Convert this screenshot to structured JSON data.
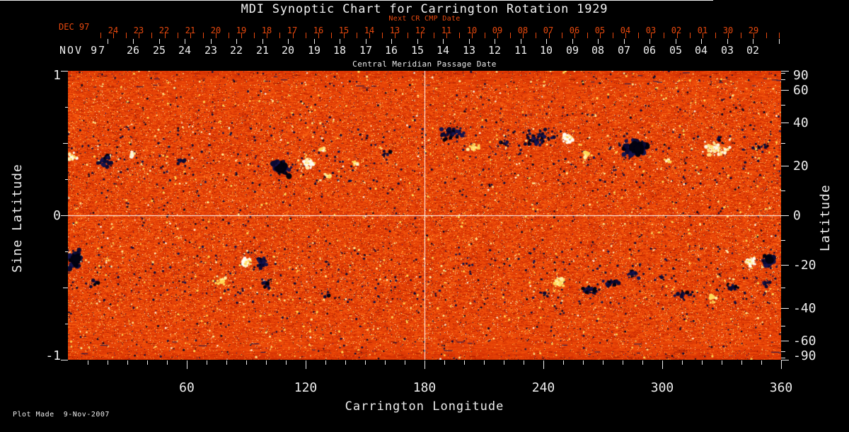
{
  "page": {
    "title": "MDI Synoptic Chart for Carrington Rotation 1929"
  },
  "colors": {
    "background": "#000000",
    "text": "#ededed",
    "accent_red": "#e8490e",
    "crosshair": "#ffffff"
  },
  "footer": {
    "plot_made": "Plot Made  9-Nov-2007"
  },
  "chart_data": {
    "type": "heatmap",
    "title": "MDI Synoptic Chart for Carrington Rotation 1929",
    "axes": {
      "top_next_cr": {
        "label": "Next CR CMP Date",
        "month": "DEC 97",
        "days": [
          "24",
          "23",
          "22",
          "21",
          "20",
          "19",
          "18",
          "17",
          "16",
          "15",
          "14",
          "13",
          "12",
          "11",
          "10",
          "09",
          "08",
          "07",
          "06",
          "05",
          "04",
          "03",
          "02",
          "01",
          "30",
          "29"
        ]
      },
      "top_cmp": {
        "label": "Central Meridian Passage Date",
        "month": "NOV 97",
        "days": [
          "26",
          "25",
          "24",
          "23",
          "22",
          "21",
          "20",
          "19",
          "18",
          "17",
          "16",
          "15",
          "14",
          "13",
          "12",
          "11",
          "10",
          "09",
          "08",
          "07",
          "06",
          "05",
          "04",
          "03",
          "02"
        ]
      },
      "bottom": {
        "label": "Carrington Longitude",
        "range": [
          0,
          360
        ],
        "major_ticks": [
          60,
          120,
          180,
          240,
          300,
          360
        ],
        "major_tick_labels": [
          "60",
          "120",
          "180",
          "240",
          "300",
          "360"
        ],
        "minor_tick_step": 10
      },
      "left": {
        "label": "Sine Latitude",
        "range": [
          1,
          -1
        ],
        "labeled_ticks": [
          1,
          0,
          -1
        ],
        "tick_labels": [
          "1",
          "0",
          "-1"
        ],
        "medium_ticks": [
          0.5,
          -0.5
        ],
        "minor_ticks": [
          0.75,
          0.25,
          -0.25,
          -0.75
        ]
      },
      "right": {
        "label": "Latitude",
        "labeled_ticks": [
          90,
          60,
          40,
          20,
          0,
          -20,
          -40,
          -60,
          -90
        ],
        "tick_labels": [
          "90",
          "60",
          "40",
          "20",
          "0",
          "-20",
          "-40",
          "-60",
          "-90"
        ],
        "minor_tick_step": 10
      }
    },
    "crosshair": {
      "longitude": 180,
      "sine_latitude": 0
    },
    "colormap": {
      "description": "solar magnetogram: orange-red quiet-sun noise, dark navy/black = negative polarity flux, white/yellow = positive polarity flux",
      "negative_polarity": "#0b0b3a",
      "positive_polarity": "#fffdf2",
      "palette": [
        [
          0.0,
          "#400600"
        ],
        [
          0.12,
          "#8c1400"
        ],
        [
          0.3,
          "#cc2a02"
        ],
        [
          0.5,
          "#ee4a08"
        ],
        [
          0.66,
          "#fa6414"
        ],
        [
          0.8,
          "#ff8c24"
        ],
        [
          0.9,
          "#ffc24a"
        ],
        [
          0.96,
          "#ffe88c"
        ],
        [
          1.0,
          "#fffdf0"
        ]
      ]
    },
    "active_regions": [
      {
        "lon": 19,
        "lat": 22,
        "rx": 18,
        "ry": 11,
        "polarity": "negative",
        "spots": 48
      },
      {
        "lon": 2,
        "lat": 24,
        "rx": 7,
        "ry": 7,
        "polarity": "positive",
        "spots": 16,
        "tone": "bright"
      },
      {
        "lon": 33,
        "lat": 25,
        "rx": 6,
        "ry": 5,
        "polarity": "positive",
        "spots": 9
      },
      {
        "lon": 57,
        "lat": 22,
        "rx": 10,
        "ry": 5,
        "polarity": "negative",
        "spots": 10
      },
      {
        "lon": 108,
        "lat": 19,
        "rx": 14,
        "ry": 11,
        "polarity": "negative",
        "spots": 60,
        "dense": true
      },
      {
        "lon": 121,
        "lat": 21,
        "rx": 10,
        "ry": 9,
        "polarity": "positive",
        "spots": 34,
        "tone": "bright"
      },
      {
        "lon": 128,
        "lat": 27,
        "rx": 5,
        "ry": 4,
        "polarity": "positive",
        "spots": 8
      },
      {
        "lon": 131,
        "lat": 16,
        "rx": 9,
        "ry": 6,
        "polarity": "positive",
        "spots": 14,
        "tone": "yellow"
      },
      {
        "lon": 145,
        "lat": 21,
        "rx": 4,
        "ry": 3,
        "polarity": "positive",
        "spots": 5
      },
      {
        "lon": 160,
        "lat": 25,
        "rx": 10,
        "ry": 6,
        "polarity": "negative",
        "spots": 10
      },
      {
        "lon": 194,
        "lat": 34,
        "rx": 22,
        "ry": 13,
        "polarity": "negative",
        "spots": 55
      },
      {
        "lon": 205,
        "lat": 28,
        "rx": 10,
        "ry": 6,
        "polarity": "positive",
        "spots": 18,
        "tone": "yellow"
      },
      {
        "lon": 221,
        "lat": 30,
        "rx": 8,
        "ry": 6,
        "polarity": "negative",
        "spots": 12
      },
      {
        "lon": 237,
        "lat": 32,
        "rx": 24,
        "ry": 14,
        "polarity": "negative",
        "spots": 60
      },
      {
        "lon": 252,
        "lat": 32,
        "rx": 11,
        "ry": 9,
        "polarity": "positive",
        "spots": 28,
        "tone": "bright"
      },
      {
        "lon": 262,
        "lat": 25,
        "rx": 8,
        "ry": 5,
        "polarity": "positive",
        "spots": 10,
        "tone": "yellow"
      },
      {
        "lon": 287,
        "lat": 28,
        "rx": 28,
        "ry": 16,
        "polarity": "negative",
        "spots": 70,
        "dense": true
      },
      {
        "lon": 303,
        "lat": 22,
        "rx": 5,
        "ry": 4,
        "polarity": "positive",
        "spots": 9,
        "tone": "bright"
      },
      {
        "lon": 327,
        "lat": 27,
        "rx": 24,
        "ry": 12,
        "polarity": "positive",
        "spots": 50
      },
      {
        "lon": 329,
        "lat": 32,
        "rx": 5,
        "ry": 4,
        "polarity": "negative",
        "spots": 7
      },
      {
        "lon": 350,
        "lat": 28,
        "rx": 13,
        "ry": 6,
        "polarity": "negative",
        "spots": 14
      },
      {
        "lon": 4,
        "lat": -18,
        "rx": 11,
        "ry": 16,
        "polarity": "negative",
        "spots": 55,
        "dense": true
      },
      {
        "lon": 14,
        "lat": -28,
        "rx": 8,
        "ry": 6,
        "polarity": "negative",
        "spots": 10
      },
      {
        "lon": 77,
        "lat": -27,
        "rx": 12,
        "ry": 9,
        "polarity": "positive",
        "spots": 12,
        "tone": "yellow"
      },
      {
        "lon": 90,
        "lat": -19,
        "rx": 9,
        "ry": 8,
        "polarity": "positive",
        "spots": 28,
        "tone": "bright"
      },
      {
        "lon": 98,
        "lat": -19,
        "rx": 10,
        "ry": 9,
        "polarity": "negative",
        "spots": 40
      },
      {
        "lon": 100,
        "lat": -28,
        "rx": 8,
        "ry": 9,
        "polarity": "negative",
        "spots": 18
      },
      {
        "lon": 130,
        "lat": -33,
        "rx": 10,
        "ry": 6,
        "polarity": "negative",
        "spots": 8
      },
      {
        "lon": 248,
        "lat": -28,
        "rx": 13,
        "ry": 9,
        "polarity": "positive",
        "spots": 20,
        "tone": "yellow"
      },
      {
        "lon": 240,
        "lat": -33,
        "rx": 8,
        "ry": 6,
        "polarity": "negative",
        "spots": 8
      },
      {
        "lon": 263,
        "lat": -31,
        "rx": 13,
        "ry": 7,
        "polarity": "negative",
        "spots": 30
      },
      {
        "lon": 274,
        "lat": -28,
        "rx": 13,
        "ry": 7,
        "polarity": "negative",
        "spots": 35
      },
      {
        "lon": 285,
        "lat": -24,
        "rx": 13,
        "ry": 7,
        "polarity": "negative",
        "spots": 28
      },
      {
        "lon": 300,
        "lat": -25,
        "rx": 6,
        "ry": 4,
        "polarity": "negative",
        "spots": 8
      },
      {
        "lon": 312,
        "lat": -33,
        "rx": 16,
        "ry": 7,
        "polarity": "negative",
        "spots": 16
      },
      {
        "lon": 325,
        "lat": -35,
        "rx": 7,
        "ry": 7,
        "polarity": "positive",
        "spots": 10,
        "tone": "yellow"
      },
      {
        "lon": 335,
        "lat": -30,
        "rx": 12,
        "ry": 9,
        "polarity": "negative",
        "spots": 16
      },
      {
        "lon": 345,
        "lat": -19,
        "rx": 8,
        "ry": 10,
        "polarity": "positive",
        "spots": 32,
        "tone": "bright"
      },
      {
        "lon": 354,
        "lat": -18,
        "rx": 10,
        "ry": 9,
        "polarity": "negative",
        "spots": 42,
        "dense": true
      },
      {
        "lon": 352,
        "lat": -28,
        "rx": 8,
        "ry": 6,
        "polarity": "negative",
        "spots": 12
      }
    ],
    "speckle_bands": [
      {
        "lat_min": 12,
        "lat_max": 38
      },
      {
        "lat_min": -38,
        "lat_max": -12
      }
    ],
    "render": {
      "seed": 19290,
      "navy_speck_rate": 0.004,
      "yellow_speck_rate": 0.003
    }
  }
}
